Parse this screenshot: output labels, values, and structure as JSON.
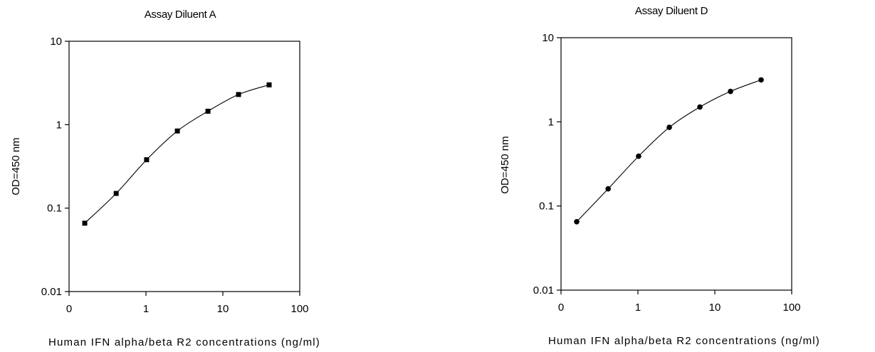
{
  "chart_data": [
    {
      "type": "line",
      "title": "Assay Diluent A",
      "xlabel": "Human IFN alpha/beta R2 concentrations (ng/ml)",
      "ylabel": "OD=450 nm",
      "xscale": "log",
      "yscale": "log",
      "xlim": [
        0.1,
        100
      ],
      "ylim": [
        0.01,
        10
      ],
      "x_ticks": [
        "0",
        "1",
        "10",
        "100"
      ],
      "y_ticks": [
        "0.01",
        "0.1",
        "1",
        "10"
      ],
      "grid": false,
      "legend": "none",
      "marker": "square",
      "series": [
        {
          "x": [
            0.16,
            0.41,
            1.02,
            2.56,
            6.4,
            16,
            40
          ],
          "y": [
            0.066,
            0.15,
            0.38,
            0.84,
            1.45,
            2.3,
            3.0
          ]
        }
      ]
    },
    {
      "type": "line",
      "title": "Assay Diluent D",
      "xlabel": "Human IFN alpha/beta R2 concentrations (ng/ml)",
      "ylabel": "OD=450 nm",
      "xscale": "log",
      "yscale": "log",
      "xlim": [
        0.1,
        100
      ],
      "ylim": [
        0.01,
        10
      ],
      "x_ticks": [
        "0",
        "1",
        "10",
        "100"
      ],
      "y_ticks": [
        "0.01",
        "0.1",
        "1",
        "10"
      ],
      "grid": false,
      "legend": "none",
      "marker": "circle",
      "series": [
        {
          "x": [
            0.16,
            0.41,
            1.02,
            2.56,
            6.4,
            16,
            40
          ],
          "y": [
            0.065,
            0.16,
            0.39,
            0.86,
            1.5,
            2.3,
            3.15
          ]
        }
      ]
    }
  ]
}
